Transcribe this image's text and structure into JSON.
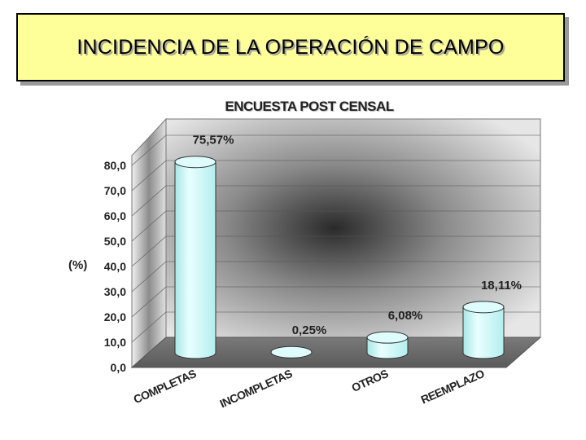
{
  "slide": {
    "title": "INCIDENCIA DE LA OPERACIÓN DE CAMPO",
    "title_bg": "#ffff99"
  },
  "chart_data": {
    "type": "bar",
    "title": "ENCUESTA POST CENSAL",
    "xlabel": "",
    "ylabel": "(%)",
    "categories": [
      "COMPLETAS",
      "INCOMPLETAS",
      "OTROS",
      "REEMPLAZO"
    ],
    "values": [
      75.57,
      0.25,
      6.08,
      18.11
    ],
    "data_labels": [
      "75,57%",
      "0,25%",
      "6,08%",
      "18,11%"
    ],
    "y_ticks": [
      "0,0",
      "10,0",
      "20,0",
      "30,0",
      "40,0",
      "50,0",
      "60,0",
      "70,0",
      "80,0"
    ],
    "ylim": [
      0,
      80
    ],
    "grid": true,
    "legend": "none",
    "bar_style": "3d-cylinder",
    "bar_color": "#ccffff"
  }
}
